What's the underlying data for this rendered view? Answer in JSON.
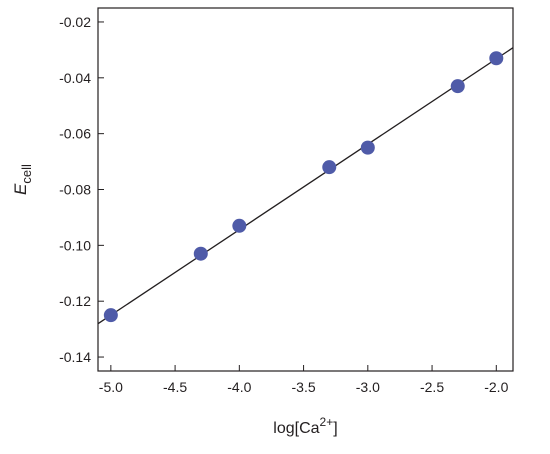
{
  "chart_data": {
    "type": "scatter",
    "title": "",
    "xlabel": {
      "base": "log[Ca",
      "sup": "2+",
      "suffix": "]"
    },
    "ylabel": {
      "italic": "E",
      "sub": "cell"
    },
    "xlim": [
      -5.1,
      -1.87
    ],
    "ylim": [
      -0.145,
      -0.015
    ],
    "x_ticks": [
      -5.0,
      -4.5,
      -4.0,
      -3.5,
      -3.0,
      -2.5,
      -2.0
    ],
    "x_tick_labels": [
      "-5.0",
      "-4.5",
      "-4.0",
      "-3.5",
      "-3.0",
      "-2.5",
      "-2.0"
    ],
    "y_ticks": [
      -0.02,
      -0.04,
      -0.06,
      -0.08,
      -0.1,
      -0.12,
      -0.14
    ],
    "y_tick_labels": [
      "-0.02",
      "-0.04",
      "-0.06",
      "-0.08",
      "-0.10",
      "-0.12",
      "-0.14"
    ],
    "grid": false,
    "legend": "none",
    "series": [
      {
        "x": [
          -5.0,
          -4.3,
          -4.0,
          -3.3,
          -3.0,
          -2.3,
          -2.0
        ],
        "y": [
          -0.125,
          -0.103,
          -0.093,
          -0.072,
          -0.065,
          -0.043,
          -0.033
        ],
        "color": "#4f5ba8"
      }
    ],
    "fit_line": {
      "slope": 0.0306,
      "intercept": 0.028,
      "color": "#231f20"
    }
  }
}
